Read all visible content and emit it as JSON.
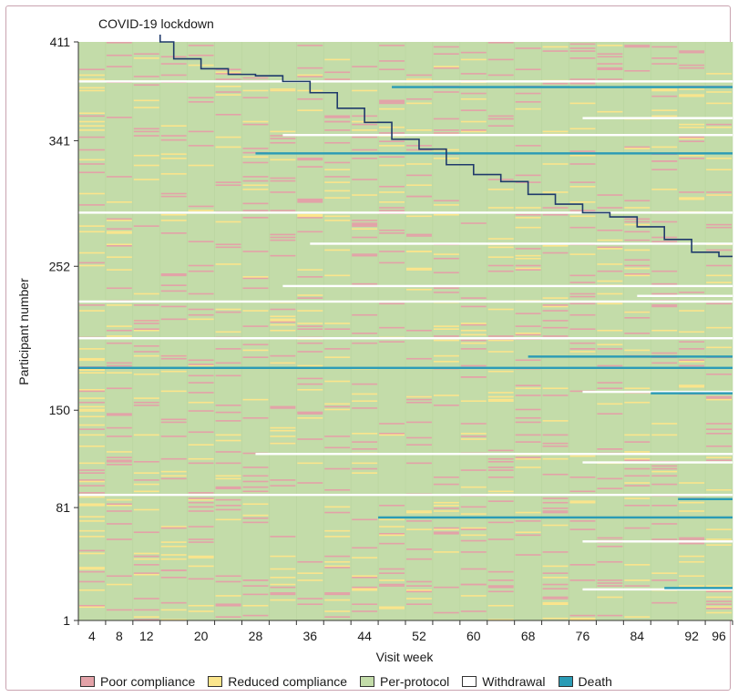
{
  "chart_data": {
    "type": "heatmap",
    "title": "",
    "annotation": "COVID-19 lockdown",
    "xlabel": "Visit week",
    "ylabel": "Participant number",
    "x_ticks": [
      4,
      8,
      12,
      20,
      28,
      36,
      44,
      52,
      60,
      68,
      76,
      84,
      92,
      96
    ],
    "y_ticks": [
      1,
      81,
      150,
      252,
      341,
      411
    ],
    "xlim": [
      2,
      98
    ],
    "ylim": [
      1,
      411
    ],
    "grid": false,
    "legend_position": "bottom",
    "categories": [
      {
        "name": "Poor compliance",
        "color": "#e3a2a8"
      },
      {
        "name": "Reduced compliance",
        "color": "#fbe58c"
      },
      {
        "name": "Per-protocol",
        "color": "#c3dca9"
      },
      {
        "name": "Withdrawal",
        "color": "#ffffff"
      },
      {
        "name": "Death",
        "color": "#2a9bb5"
      }
    ],
    "lockdown_boundary": [
      {
        "week": 14,
        "participant": 411
      },
      {
        "week": 16,
        "participant": 399
      },
      {
        "week": 20,
        "participant": 392
      },
      {
        "week": 24,
        "participant": 388
      },
      {
        "week": 28,
        "participant": 387
      },
      {
        "week": 32,
        "participant": 383
      },
      {
        "week": 36,
        "participant": 375
      },
      {
        "week": 40,
        "participant": 364
      },
      {
        "week": 44,
        "participant": 354
      },
      {
        "week": 48,
        "participant": 342
      },
      {
        "week": 52,
        "participant": 335
      },
      {
        "week": 56,
        "participant": 324
      },
      {
        "week": 60,
        "participant": 317
      },
      {
        "week": 64,
        "participant": 312
      },
      {
        "week": 68,
        "participant": 303
      },
      {
        "week": 72,
        "participant": 296
      },
      {
        "week": 76,
        "participant": 290
      },
      {
        "week": 80,
        "participant": 287
      },
      {
        "week": 84,
        "participant": 280
      },
      {
        "week": 88,
        "participant": 271
      },
      {
        "week": 92,
        "participant": 262
      },
      {
        "week": 96,
        "participant": 259
      }
    ],
    "withdrawals": [
      {
        "participant": 383,
        "from_week": 2
      },
      {
        "participant": 290,
        "from_week": 2
      },
      {
        "participant": 227,
        "from_week": 2
      },
      {
        "participant": 201,
        "from_week": 2
      },
      {
        "participant": 180,
        "from_week": 36
      },
      {
        "participant": 163,
        "from_week": 76
      },
      {
        "participant": 119,
        "from_week": 28
      },
      {
        "participant": 113,
        "from_week": 76
      },
      {
        "participant": 90,
        "from_week": 2
      },
      {
        "participant": 57,
        "from_week": 76
      },
      {
        "participant": 23,
        "from_week": 76
      },
      {
        "participant": 357,
        "from_week": 76
      },
      {
        "participant": 345,
        "from_week": 32
      },
      {
        "participant": 268,
        "from_week": 36
      },
      {
        "participant": 238,
        "from_week": 32
      },
      {
        "participant": 231,
        "from_week": 84
      }
    ],
    "deaths": [
      {
        "participant": 379,
        "from_week": 48
      },
      {
        "participant": 332,
        "from_week": 28
      },
      {
        "participant": 188,
        "from_week": 68
      },
      {
        "participant": 180,
        "from_week": 2
      },
      {
        "participant": 162,
        "from_week": 86
      },
      {
        "participant": 87,
        "from_week": 90
      },
      {
        "participant": 74,
        "from_week": 46
      },
      {
        "participant": 24,
        "from_week": 88
      }
    ]
  }
}
